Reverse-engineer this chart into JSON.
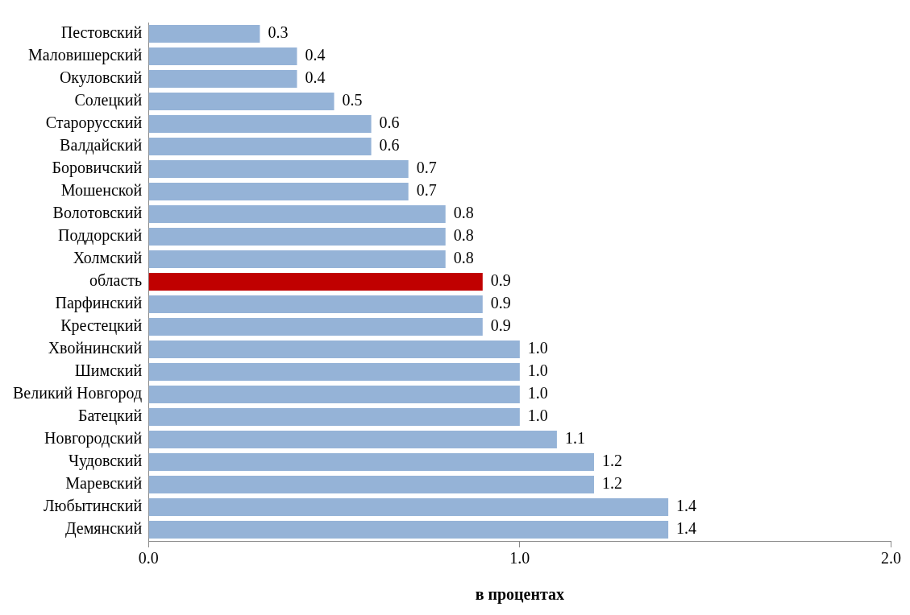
{
  "chart_data": {
    "type": "bar",
    "orientation": "horizontal",
    "xlabel": "в процентах",
    "categories": [
      "Пестовский",
      "Маловишерский",
      "Окуловский",
      "Солецкий",
      "Старорусский",
      "Валдайский",
      "Боровичский",
      "Мошенской",
      "Волотовский",
      "Поддорский",
      "Холмский",
      "область",
      "Парфинский",
      "Крестецкий",
      "Хвойнинский",
      "Шимский",
      "Великий Новгород",
      "Батецкий",
      "Новгородский",
      "Чудовский",
      "Маревский",
      "Любытинский",
      "Демянский"
    ],
    "values": [
      0.3,
      0.4,
      0.4,
      0.5,
      0.6,
      0.6,
      0.7,
      0.7,
      0.8,
      0.8,
      0.8,
      0.9,
      0.9,
      0.9,
      1.0,
      1.0,
      1.0,
      1.0,
      1.1,
      1.2,
      1.2,
      1.4,
      1.4
    ],
    "value_labels": [
      "0.3",
      "0.4",
      "0.4",
      "0.5",
      "0.6",
      "0.6",
      "0.7",
      "0.7",
      "0.8",
      "0.8",
      "0.8",
      "0.9",
      "0.9",
      "0.9",
      "1.0",
      "1.0",
      "1.0",
      "1.0",
      "1.1",
      "1.2",
      "1.2",
      "1.4",
      "1.4"
    ],
    "colors": [
      "#95b3d7",
      "#95b3d7",
      "#95b3d7",
      "#95b3d7",
      "#95b3d7",
      "#95b3d7",
      "#95b3d7",
      "#95b3d7",
      "#95b3d7",
      "#95b3d7",
      "#95b3d7",
      "#c00000",
      "#95b3d7",
      "#95b3d7",
      "#95b3d7",
      "#95b3d7",
      "#95b3d7",
      "#95b3d7",
      "#95b3d7",
      "#95b3d7",
      "#95b3d7",
      "#95b3d7",
      "#95b3d7"
    ],
    "xlim": [
      0,
      2
    ],
    "xticks": [
      {
        "value": 0,
        "label": "0.0"
      },
      {
        "value": 1,
        "label": "1.0"
      },
      {
        "value": 2,
        "label": "2.0"
      }
    ],
    "grid": false,
    "legend": false
  }
}
